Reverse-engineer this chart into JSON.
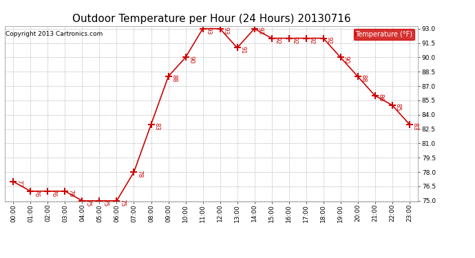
{
  "title": "Outdoor Temperature per Hour (24 Hours) 20130716",
  "copyright": "Copyright 2013 Cartronics.com",
  "legend_label": "Temperature (°F)",
  "hours": [
    0,
    1,
    2,
    3,
    4,
    5,
    6,
    7,
    8,
    9,
    10,
    11,
    12,
    13,
    14,
    15,
    16,
    17,
    18,
    19,
    20,
    21,
    22,
    23
  ],
  "hour_labels": [
    "00:00",
    "01:00",
    "02:00",
    "03:00",
    "04:00",
    "05:00",
    "06:00",
    "07:00",
    "08:00",
    "09:00",
    "10:00",
    "11:00",
    "12:00",
    "13:00",
    "14:00",
    "15:00",
    "16:00",
    "17:00",
    "18:00",
    "19:00",
    "20:00",
    "21:00",
    "22:00",
    "23:00"
  ],
  "temps": [
    77,
    76,
    76,
    76,
    75,
    75,
    75,
    78,
    83,
    88,
    90,
    93,
    93,
    91,
    93,
    92,
    92,
    92,
    92,
    90,
    88,
    86,
    85,
    83
  ],
  "ylim_min": 75.0,
  "ylim_max": 93.0,
  "ytick_step": 1.5,
  "line_color": "#cc0000",
  "marker": "+",
  "marker_size": 7,
  "marker_lw": 1.5,
  "line_width": 1.2,
  "bg_color": "#ffffff",
  "grid_color": "#bbbbbb",
  "title_fontsize": 11,
  "tick_fontsize": 6.5,
  "annotation_fontsize": 6.5,
  "copyright_fontsize": 6.5,
  "legend_bg": "#cc0000",
  "legend_text_color": "#ffffff",
  "legend_fontsize": 7
}
